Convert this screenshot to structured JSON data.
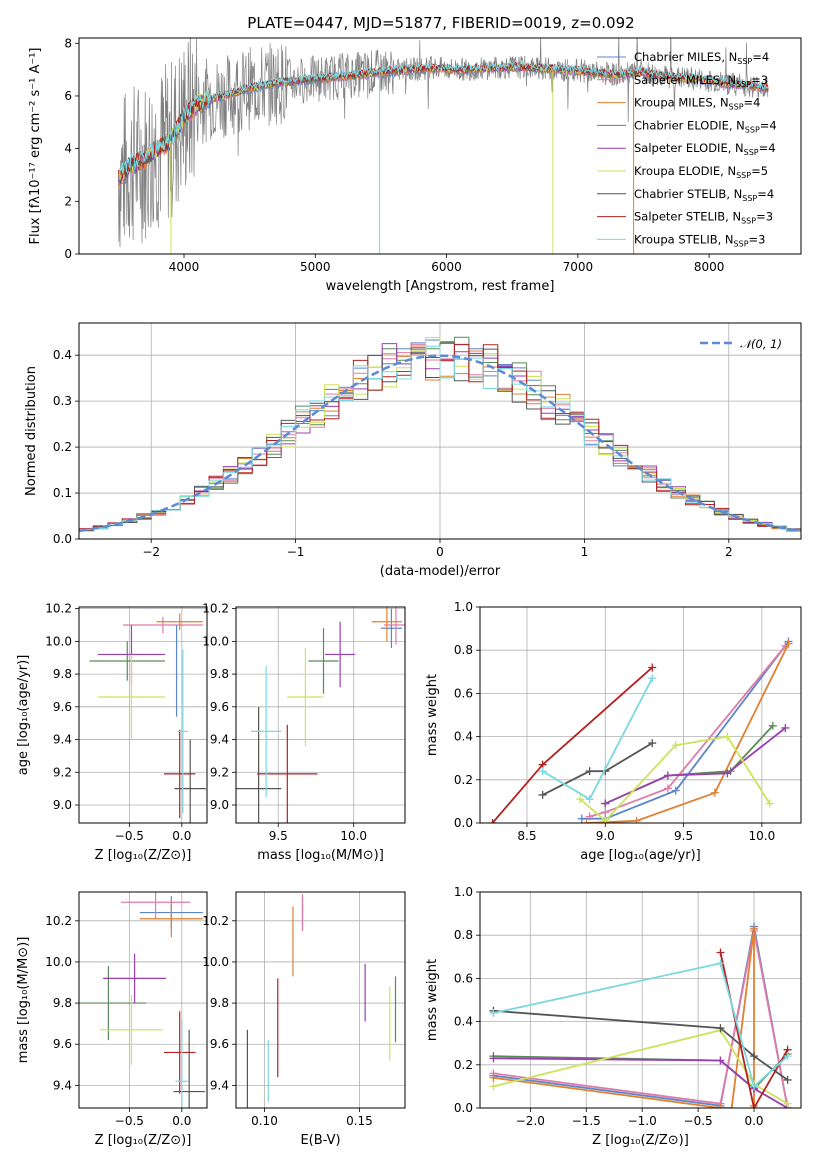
{
  "title": "PLATE=0447, MJD=51877, FIBERID=0019, z=0.092",
  "colors": {
    "Chabrier MILES": "#5b86c9",
    "Salpeter MILES": "#e07ba8",
    "Kroupa MILES": "#e08030",
    "Chabrier ELODIE": "#5a8a5a",
    "Salpeter ELODIE": "#9a3fb0",
    "Kroupa ELODIE": "#cce35a",
    "Chabrier STELIB": "#555555",
    "Salpeter STELIB": "#b52020",
    "Kroupa STELIB": "#7ad8e0",
    "data": "#808080",
    "normal": "#5b8bd6"
  },
  "chart_data": [
    {
      "type": "line",
      "name": "spectrum",
      "xlabel": "wavelength [Angstrom, rest frame]",
      "ylabel": "Flux [fλ10⁻¹⁷ erg cm⁻² s⁻¹ A⁻¹]",
      "xlim": [
        3200,
        8700
      ],
      "ylim": [
        0,
        8.2
      ],
      "xticks": [
        "4000",
        "5000",
        "6000",
        "7000",
        "8000"
      ],
      "yticks": [
        "0",
        "2",
        "4",
        "6",
        "8"
      ],
      "legend_position": "right",
      "legend": [
        {
          "model": "Chabrier MILES",
          "label": "Chabrier MILES, N",
          "sub": "SSP",
          "tail": "=4"
        },
        {
          "model": "Salpeter MILES",
          "label": "Salpeter MILES, N",
          "sub": "SSP",
          "tail": "=3"
        },
        {
          "model": "Kroupa MILES",
          "label": "Kroupa MILES, N",
          "sub": "SSP",
          "tail": "=4"
        },
        {
          "model": "Chabrier ELODIE",
          "label": "Chabrier ELODIE, N",
          "sub": "SSP",
          "tail": "=4"
        },
        {
          "model": "Salpeter ELODIE",
          "label": "Salpeter ELODIE, N",
          "sub": "SSP",
          "tail": "=4"
        },
        {
          "model": "Kroupa ELODIE",
          "label": "Kroupa ELODIE, N",
          "sub": "SSP",
          "tail": "=5"
        },
        {
          "model": "Chabrier STELIB",
          "label": "Chabrier STELIB, N",
          "sub": "SSP",
          "tail": "=4"
        },
        {
          "model": "Salpeter STELIB",
          "label": "Salpeter STELIB, N",
          "sub": "SSP",
          "tail": "=3"
        },
        {
          "model": "Kroupa STELIB",
          "label": "Kroupa STELIB, N",
          "sub": "SSP",
          "tail": "=3"
        }
      ],
      "continuum": {
        "x": [
          3500,
          3600,
          3700,
          3800,
          3900,
          4000,
          4100,
          4200,
          4300,
          4500,
          4700,
          4900,
          5100,
          5300,
          5500,
          5700,
          5900,
          6100,
          6300,
          6500,
          6700,
          6900,
          7100,
          7300,
          7500,
          7700,
          7900,
          8100,
          8300,
          8450
        ],
        "y": [
          2.9,
          3.4,
          3.6,
          4.0,
          4.3,
          5.2,
          5.7,
          5.9,
          6.0,
          6.3,
          6.5,
          6.6,
          6.7,
          6.8,
          6.9,
          7.0,
          7.05,
          7.0,
          7.05,
          7.1,
          7.05,
          7.0,
          6.9,
          6.8,
          6.9,
          6.7,
          6.65,
          6.5,
          6.4,
          6.3
        ]
      }
    },
    {
      "type": "histogram",
      "name": "residuals",
      "xlabel": "(data-model)/error",
      "ylabel": "Normed distribution",
      "xlim": [
        -2.5,
        2.5
      ],
      "ylim": [
        0,
        0.47
      ],
      "xticks": [
        "−2",
        "−1",
        "0",
        "1",
        "2"
      ],
      "yticks": [
        "0.0",
        "0.1",
        "0.2",
        "0.3",
        "0.4"
      ],
      "bin_width": 0.1,
      "legend": "𝒩(0, 1)",
      "grid": true
    },
    {
      "type": "errorbar",
      "name": "age-vs-Z",
      "xlabel": "Z [log₁₀(Z/Z⊙)]",
      "ylabel": "age  [log₁₀(age/yr)]",
      "xlim": [
        -0.98,
        0.24
      ],
      "ylim": [
        8.89,
        10.21
      ],
      "xticks": [
        "−0.5",
        "0.0"
      ],
      "yticks": [
        "9.0",
        "9.2",
        "9.4",
        "9.6",
        "9.8",
        "10.0",
        "10.2"
      ],
      "points": [
        {
          "model": "Chabrier MILES",
          "x": -0.05,
          "xerr": 0.0,
          "y": 9.82,
          "yerr": 0.28
        },
        {
          "model": "Salpeter MILES",
          "x": -0.18,
          "xerr": 0.38,
          "y": 10.1,
          "yerr": 0.05
        },
        {
          "model": "Kroupa MILES",
          "x": -0.02,
          "xerr": 0.22,
          "y": 10.12,
          "yerr": 0.05
        },
        {
          "model": "Chabrier ELODIE",
          "x": -0.52,
          "xerr": 0.36,
          "y": 9.88,
          "yerr": 0.12
        },
        {
          "model": "Salpeter ELODIE",
          "x": -0.48,
          "xerr": 0.32,
          "y": 9.92,
          "yerr": 0.18
        },
        {
          "model": "Kroupa ELODIE",
          "x": -0.48,
          "xerr": 0.32,
          "y": 9.66,
          "yerr": 0.26
        },
        {
          "model": "Chabrier STELIB",
          "x": 0.08,
          "xerr": 0.15,
          "y": 9.1,
          "yerr": 0.3
        },
        {
          "model": "Salpeter STELIB",
          "x": -0.02,
          "xerr": 0.15,
          "y": 9.19,
          "yerr": 0.27
        },
        {
          "model": "Kroupa STELIB",
          "x": 0.01,
          "xerr": 0.05,
          "y": 9.45,
          "yerr": 0.5
        }
      ]
    },
    {
      "type": "errorbar",
      "name": "age-vs-mass",
      "xlabel": "mass [log₁₀(M/M⊙)]",
      "ylabel": "",
      "xlim": [
        9.22,
        10.34
      ],
      "ylim": [
        8.89,
        10.21
      ],
      "xticks": [
        "9.5",
        "10.0"
      ],
      "yticks": [
        "9.0",
        "9.2",
        "9.4",
        "9.6",
        "9.8",
        "10.0",
        "10.2"
      ],
      "points": [
        {
          "model": "Chabrier MILES",
          "x": 10.25,
          "xerr": 0.07,
          "y": 10.08,
          "yerr": 0.12
        },
        {
          "model": "Salpeter MILES",
          "x": 10.28,
          "xerr": 0.08,
          "y": 10.1,
          "yerr": 0.12
        },
        {
          "model": "Kroupa MILES",
          "x": 10.22,
          "xerr": 0.1,
          "y": 10.12,
          "yerr": 0.12
        },
        {
          "model": "Chabrier ELODIE",
          "x": 9.8,
          "xerr": 0.1,
          "y": 9.88,
          "yerr": 0.2
        },
        {
          "model": "Salpeter ELODIE",
          "x": 9.91,
          "xerr": 0.1,
          "y": 9.92,
          "yerr": 0.2
        },
        {
          "model": "Kroupa ELODIE",
          "x": 9.68,
          "xerr": 0.12,
          "y": 9.66,
          "yerr": 0.3
        },
        {
          "model": "Chabrier STELIB",
          "x": 9.37,
          "xerr": 0.15,
          "y": 9.1,
          "yerr": 0.5
        },
        {
          "model": "Salpeter STELIB",
          "x": 9.56,
          "xerr": 0.2,
          "y": 9.19,
          "yerr": 0.3
        },
        {
          "model": "Kroupa STELIB",
          "x": 9.42,
          "xerr": 0.1,
          "y": 9.45,
          "yerr": 0.4
        }
      ]
    },
    {
      "type": "line",
      "name": "mass-weight-vs-age",
      "xlabel": "age  [log₁₀(age/yr)]",
      "ylabel": "mass weight",
      "xlim": [
        8.2,
        10.25
      ],
      "ylim": [
        0,
        1.0
      ],
      "xticks": [
        "8.5",
        "9.0",
        "9.5",
        "10.0"
      ],
      "yticks": [
        "0.0",
        "0.2",
        "0.4",
        "0.6",
        "0.8",
        "1.0"
      ],
      "series": [
        {
          "model": "Chabrier MILES",
          "x": [
            8.85,
            9.0,
            9.45,
            10.17
          ],
          "y": [
            0.02,
            0.02,
            0.15,
            0.84
          ]
        },
        {
          "model": "Salpeter MILES",
          "x": [
            8.9,
            9.0,
            9.4,
            10.15
          ],
          "y": [
            0.03,
            0.05,
            0.16,
            0.82
          ]
        },
        {
          "model": "Kroupa MILES",
          "x": [
            8.88,
            9.2,
            9.7,
            10.17
          ],
          "y": [
            0.0,
            0.01,
            0.14,
            0.83
          ]
        },
        {
          "model": "Chabrier ELODIE",
          "x": [
            9.0,
            9.4,
            9.8,
            10.07
          ],
          "y": [
            0.09,
            0.22,
            0.24,
            0.45
          ]
        },
        {
          "model": "Salpeter ELODIE",
          "x": [
            9.0,
            9.4,
            9.78,
            10.15
          ],
          "y": [
            0.09,
            0.22,
            0.23,
            0.44
          ]
        },
        {
          "model": "Kroupa ELODIE",
          "x": [
            8.84,
            9.0,
            9.45,
            9.78,
            10.05
          ],
          "y": [
            0.11,
            0.01,
            0.36,
            0.4,
            0.09
          ]
        },
        {
          "model": "Chabrier STELIB",
          "x": [
            8.6,
            8.9,
            9.0,
            9.3
          ],
          "y": [
            0.13,
            0.24,
            0.24,
            0.37
          ]
        },
        {
          "model": "Salpeter STELIB",
          "x": [
            8.28,
            8.6,
            9.3
          ],
          "y": [
            0.0,
            0.27,
            0.72
          ]
        },
        {
          "model": "Kroupa STELIB",
          "x": [
            8.6,
            8.9,
            9.3
          ],
          "y": [
            0.24,
            0.11,
            0.67
          ]
        }
      ]
    },
    {
      "type": "errorbar",
      "name": "mass-vs-Z",
      "xlabel": "Z [log₁₀(Z/Z⊙)]",
      "ylabel": "mass [log₁₀(M/M⊙)]",
      "xlim": [
        -0.98,
        0.24
      ],
      "ylim": [
        9.29,
        10.34
      ],
      "xticks": [
        "−0.5",
        "0.0"
      ],
      "yticks": [
        "9.4",
        "9.6",
        "9.8",
        "10.0",
        "10.2"
      ],
      "points": [
        {
          "model": "Chabrier MILES",
          "x": -0.1,
          "xerr": 0.3,
          "y": 10.24,
          "yerr": 0.08
        },
        {
          "model": "Salpeter MILES",
          "x": -0.25,
          "xerr": 0.33,
          "y": 10.29,
          "yerr": 0.08
        },
        {
          "model": "Kroupa MILES",
          "x": -0.1,
          "xerr": 0.3,
          "y": 10.21,
          "yerr": 0.09
        },
        {
          "model": "Chabrier ELODIE",
          "x": -0.7,
          "xerr": 0.36,
          "y": 9.8,
          "yerr": 0.18
        },
        {
          "model": "Salpeter ELODIE",
          "x": -0.45,
          "xerr": 0.3,
          "y": 9.92,
          "yerr": 0.12
        },
        {
          "model": "Kroupa ELODIE",
          "x": -0.48,
          "xerr": 0.3,
          "y": 9.67,
          "yerr": 0.17
        },
        {
          "model": "Chabrier STELIB",
          "x": 0.07,
          "xerr": 0.15,
          "y": 9.37,
          "yerr": 0.3
        },
        {
          "model": "Salpeter STELIB",
          "x": -0.02,
          "xerr": 0.15,
          "y": 9.56,
          "yerr": 0.2
        },
        {
          "model": "Kroupa STELIB",
          "x": 0.0,
          "xerr": 0.06,
          "y": 9.42,
          "yerr": 0.3
        }
      ]
    },
    {
      "type": "errorbar",
      "name": "mass-vs-ebv",
      "xlabel": "E(B-V)",
      "ylabel": "",
      "xlim": [
        0.085,
        0.174
      ],
      "ylim": [
        9.29,
        10.34
      ],
      "xticks": [
        "0.10",
        "0.15"
      ],
      "yticks": [
        "9.4",
        "9.6",
        "9.8",
        "10.0",
        "10.2"
      ],
      "points": [
        {
          "model": "Chabrier MILES",
          "x": 0.12,
          "xerr": 0,
          "y": 10.24,
          "yerr": 0.07
        },
        {
          "model": "Salpeter MILES",
          "x": 0.12,
          "xerr": 0,
          "y": 10.24,
          "yerr": 0.09
        },
        {
          "model": "Kroupa MILES",
          "x": 0.115,
          "xerr": 0,
          "y": 10.1,
          "yerr": 0.17
        },
        {
          "model": "Chabrier ELODIE",
          "x": 0.169,
          "xerr": 0,
          "y": 9.77,
          "yerr": 0.16
        },
        {
          "model": "Salpeter ELODIE",
          "x": 0.153,
          "xerr": 0,
          "y": 9.85,
          "yerr": 0.14
        },
        {
          "model": "Kroupa ELODIE",
          "x": 0.166,
          "xerr": 0,
          "y": 9.7,
          "yerr": 0.18
        },
        {
          "model": "Chabrier STELIB",
          "x": 0.091,
          "xerr": 0,
          "y": 9.48,
          "yerr": 0.19
        },
        {
          "model": "Salpeter STELIB",
          "x": 0.107,
          "xerr": 0,
          "y": 9.68,
          "yerr": 0.24
        },
        {
          "model": "Kroupa STELIB",
          "x": 0.102,
          "xerr": 0,
          "y": 9.47,
          "yerr": 0.15
        }
      ]
    },
    {
      "type": "line",
      "name": "mass-weight-vs-Z",
      "xlabel": "Z [log₁₀(Z/Z⊙)]",
      "ylabel": "mass weight",
      "xlim": [
        -2.45,
        0.42
      ],
      "ylim": [
        0,
        1.0
      ],
      "xticks": [
        "−2.0",
        "−1.5",
        "−1.0",
        "−0.5",
        "0.0"
      ],
      "yticks": [
        "0.0",
        "0.2",
        "0.4",
        "0.6",
        "0.8",
        "1.0"
      ],
      "series": [
        {
          "model": "Chabrier MILES",
          "x": [
            -2.33,
            -0.3,
            0.0,
            0.3
          ],
          "y": [
            0.15,
            0.01,
            0.84,
            0.0
          ]
        },
        {
          "model": "Salpeter MILES",
          "x": [
            -2.33,
            -0.3,
            0.0,
            0.3
          ],
          "y": [
            0.16,
            0.02,
            0.82,
            0.0
          ]
        },
        {
          "model": "Kroupa MILES",
          "x": [
            -2.33,
            -0.3,
            -0.2,
            0.0,
            0.0
          ],
          "y": [
            0.14,
            0.0,
            0.0,
            0.83,
            0.01
          ]
        },
        {
          "model": "Chabrier ELODIE",
          "x": [
            -2.33,
            -0.3,
            0.0,
            0.3
          ],
          "y": [
            0.24,
            0.22,
            0.09,
            0.25
          ]
        },
        {
          "model": "Salpeter ELODIE",
          "x": [
            -2.33,
            -0.3,
            0.0,
            0.3
          ],
          "y": [
            0.23,
            0.22,
            0.09,
            0.0
          ]
        },
        {
          "model": "Kroupa ELODIE",
          "x": [
            -2.33,
            -0.3,
            0.0,
            0.3
          ],
          "y": [
            0.1,
            0.36,
            0.11,
            0.02
          ]
        },
        {
          "model": "Chabrier STELIB",
          "x": [
            -2.33,
            -0.3,
            0.0,
            0.3
          ],
          "y": [
            0.45,
            0.37,
            0.24,
            0.13
          ]
        },
        {
          "model": "Salpeter STELIB",
          "x": [
            -0.3,
            0.0,
            0.3
          ],
          "y": [
            0.72,
            0.0,
            0.27
          ]
        },
        {
          "model": "Kroupa STELIB",
          "x": [
            -2.33,
            -0.3,
            0.0,
            0.3
          ],
          "y": [
            0.44,
            0.67,
            0.1,
            0.24
          ]
        }
      ]
    }
  ]
}
